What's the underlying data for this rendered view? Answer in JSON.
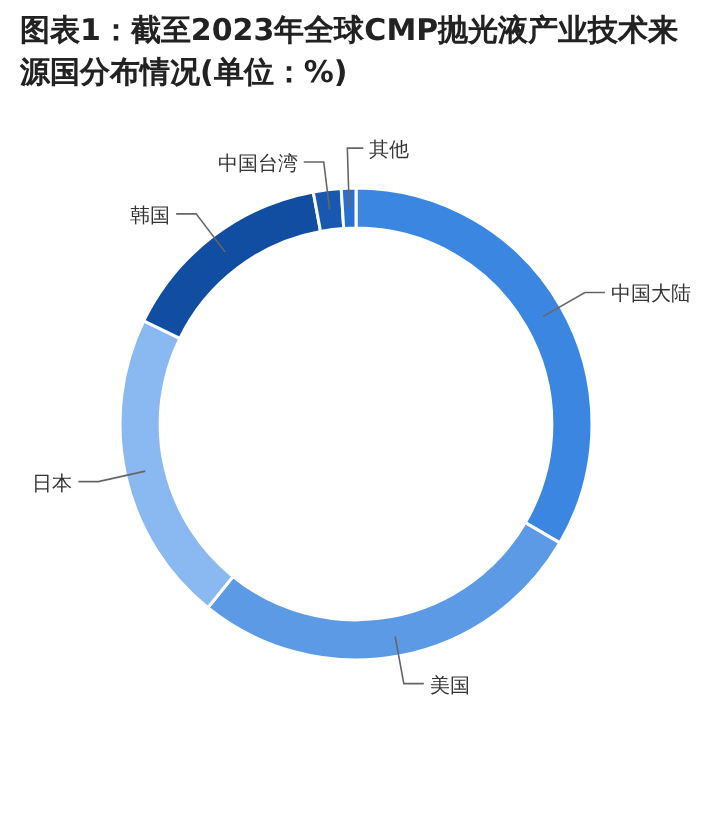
{
  "chart_data": {
    "type": "donut",
    "title": "图表1：截至2023年全球CMP抛光液产业技术来源国分布情况(单位：%)",
    "categories": [
      "中国大陆",
      "美国",
      "日本",
      "韩国",
      "中国台湾",
      "其他"
    ],
    "values": [
      33.4,
      27.4,
      21.4,
      14.9,
      1.9,
      1.0
    ],
    "colors": [
      "#3b86e0",
      "#5c9ae6",
      "#8ab8f0",
      "#114da0",
      "#1858b0",
      "#2a70d0"
    ],
    "legend": false
  }
}
